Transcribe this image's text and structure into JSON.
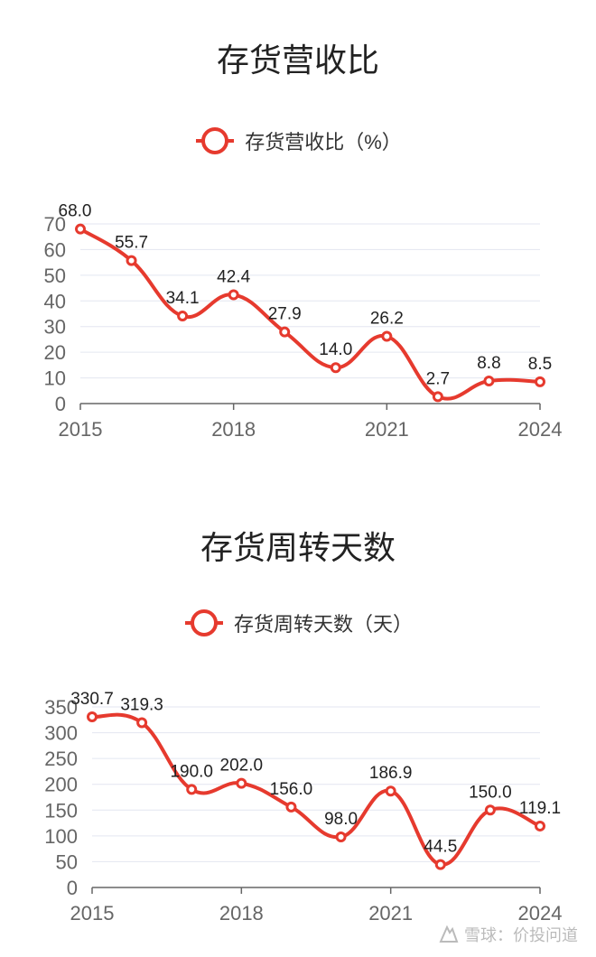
{
  "chart_data": [
    {
      "type": "line",
      "title": "存货营收比",
      "x": [
        "2015",
        "2016",
        "2017",
        "2018",
        "2019",
        "2020",
        "2021",
        "2022",
        "2023",
        "2024"
      ],
      "series": [
        {
          "name": "存货营收比（%）",
          "values": [
            68.0,
            55.7,
            34.1,
            42.4,
            27.9,
            14.0,
            26.2,
            2.7,
            8.8,
            8.5
          ],
          "labels": [
            "68.0",
            "55.7",
            "34.1",
            "42.4",
            "27.9",
            "14.0",
            "26.2",
            "2.7",
            "8.8",
            "8.5"
          ]
        }
      ],
      "x_tick_labels": [
        "2015",
        "2018",
        "2021",
        "2024"
      ],
      "y_ticks": [
        "0",
        "10",
        "20",
        "30",
        "40",
        "50",
        "60",
        "70"
      ],
      "ylim": [
        0,
        70
      ],
      "grid": true,
      "legend_position": "top-center",
      "color": "#e63a2e"
    },
    {
      "type": "line",
      "title": "存货周转天数",
      "x": [
        "2015",
        "2016",
        "2017",
        "2018",
        "2019",
        "2020",
        "2021",
        "2022",
        "2023",
        "2024"
      ],
      "series": [
        {
          "name": "存货周转天数（天）",
          "values": [
            330.7,
            319.3,
            190.0,
            202.0,
            156.0,
            98.0,
            186.9,
            44.5,
            150.0,
            119.1
          ],
          "labels": [
            "330.7",
            "319.3",
            "190.0",
            "202.0",
            "156.0",
            "98.0",
            "186.9",
            "44.5",
            "150.0",
            "119.1"
          ]
        }
      ],
      "x_tick_labels": [
        "2015",
        "2018",
        "2021",
        "2024"
      ],
      "y_ticks": [
        "0",
        "50",
        "100",
        "150",
        "200",
        "250",
        "300",
        "350"
      ],
      "ylim": [
        0,
        350
      ],
      "grid": true,
      "legend_position": "top-center",
      "color": "#e63a2e"
    }
  ],
  "watermark": {
    "text": "雪球：价投问道",
    "icon": "snowball-logo-icon"
  }
}
